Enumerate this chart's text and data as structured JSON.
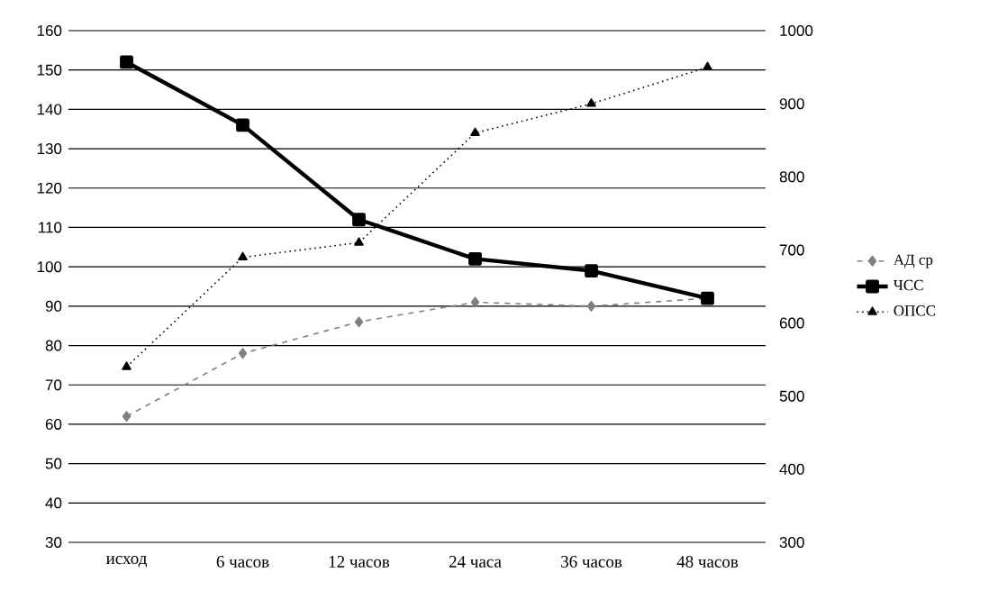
{
  "chart_data": {
    "type": "line",
    "categories": [
      "исход",
      "6 часов",
      "12 часов",
      "24 часа",
      "36 часов",
      "48 часов"
    ],
    "series": [
      {
        "name": "АД ср",
        "color": "#808080",
        "values": [
          62,
          78,
          86,
          91,
          90,
          92
        ],
        "marker": "diamond",
        "line_style": "dashed"
      },
      {
        "name": "ЧСС",
        "color": "#000000",
        "values": [
          152,
          136,
          112,
          102,
          99,
          92
        ],
        "marker": "square",
        "line_style": "solid"
      },
      {
        "name": "ОПСС",
        "color": "#000000",
        "values": [
          540,
          690,
          710,
          860,
          900,
          950
        ],
        "marker": "triangle",
        "line_style": "dotted",
        "axis": "y2"
      }
    ],
    "ylim": [
      30,
      160
    ],
    "yticks": [
      30,
      40,
      50,
      60,
      70,
      80,
      90,
      100,
      110,
      120,
      130,
      140,
      150,
      160
    ],
    "y2lim": [
      300,
      1000
    ],
    "y2ticks": [
      300,
      400,
      500,
      600,
      700,
      800,
      900,
      1000
    ],
    "grid": "y",
    "legend": "right"
  }
}
